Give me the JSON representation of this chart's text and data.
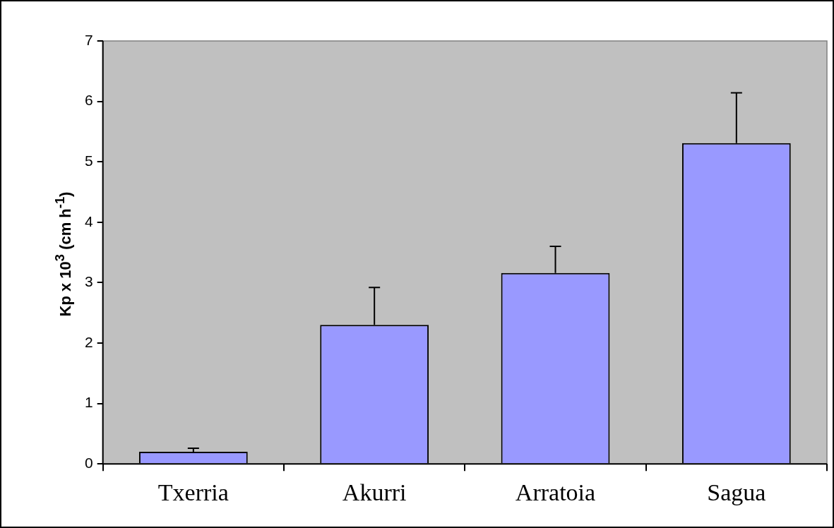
{
  "chart_data": {
    "type": "bar",
    "ylabel": "Kp x 10$^{3}$ (cm h$^{-1}$)",
    "categories": [
      "Txerria",
      "Akurri",
      "Arratoia",
      "Sagua"
    ],
    "values": [
      0.2,
      2.3,
      3.16,
      5.31
    ],
    "errors": [
      [
        0.2,
        0.26
      ],
      [
        2.3,
        2.92
      ],
      [
        3.16,
        3.6
      ],
      [
        5.31,
        6.14
      ]
    ],
    "color": "#9999ff",
    "ylim": [
      0,
      7
    ],
    "yticks": [
      0,
      1,
      2,
      3,
      4,
      5,
      6,
      7
    ],
    "grid": false,
    "legend": false
  }
}
